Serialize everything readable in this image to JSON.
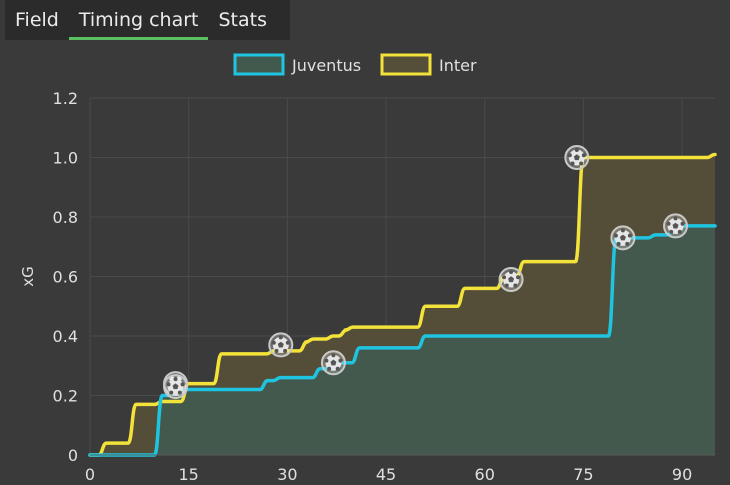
{
  "tabs": [
    {
      "label": "Field"
    },
    {
      "label": "Timing chart"
    },
    {
      "label": "Stats"
    }
  ],
  "active_tab": 1,
  "colors": {
    "juventus": "#1fc4e0",
    "inter": "#f2e23a",
    "juventus_fill": "#425a4e",
    "inter_fill": "#554e38",
    "plot_bg": "#3a3a3a",
    "grid": "#4a4a4a"
  },
  "chart_data": {
    "type": "line",
    "ylabel": "xG",
    "xlabel": "",
    "xlim": [
      0,
      95
    ],
    "ylim": [
      0,
      1.2
    ],
    "xticks": [
      0,
      15,
      30,
      45,
      60,
      75,
      90
    ],
    "yticks": [
      0,
      0.2,
      0.4,
      0.6,
      0.8,
      1.0,
      1.2
    ],
    "ytick_labels": [
      "0",
      "0.2",
      "0.4",
      "0.6",
      "0.8",
      "1.0",
      "1.2"
    ],
    "legend": "top-center",
    "series": [
      {
        "name": "Inter",
        "color": "#f2e23a",
        "steps": [
          [
            0,
            0
          ],
          [
            2.5,
            0.04
          ],
          [
            7,
            0.17
          ],
          [
            11,
            0.18
          ],
          [
            15,
            0.24
          ],
          [
            20,
            0.34
          ],
          [
            28,
            0.35
          ],
          [
            33,
            0.38
          ],
          [
            34,
            0.39
          ],
          [
            37,
            0.4
          ],
          [
            39,
            0.42
          ],
          [
            40,
            0.43
          ],
          [
            51,
            0.5
          ],
          [
            57,
            0.56
          ],
          [
            63,
            0.6
          ],
          [
            66,
            0.65
          ],
          [
            75,
            1.0
          ],
          [
            95,
            1.01
          ]
        ],
        "goals": [
          [
            13,
            0.24
          ],
          [
            29,
            0.37
          ],
          [
            64,
            0.59
          ],
          [
            74,
            1.0
          ]
        ]
      },
      {
        "name": "Juventus",
        "color": "#1fc4e0",
        "steps": [
          [
            0,
            0
          ],
          [
            11,
            0.2
          ],
          [
            13,
            0.22
          ],
          [
            27,
            0.25
          ],
          [
            29,
            0.26
          ],
          [
            35,
            0.29
          ],
          [
            37,
            0.31
          ],
          [
            41,
            0.36
          ],
          [
            51,
            0.4
          ],
          [
            80,
            0.73
          ],
          [
            86,
            0.74
          ],
          [
            89,
            0.77
          ]
        ],
        "goals": [
          [
            13,
            0.23
          ],
          [
            37,
            0.31
          ],
          [
            81,
            0.73
          ],
          [
            89,
            0.77
          ]
        ]
      }
    ]
  }
}
